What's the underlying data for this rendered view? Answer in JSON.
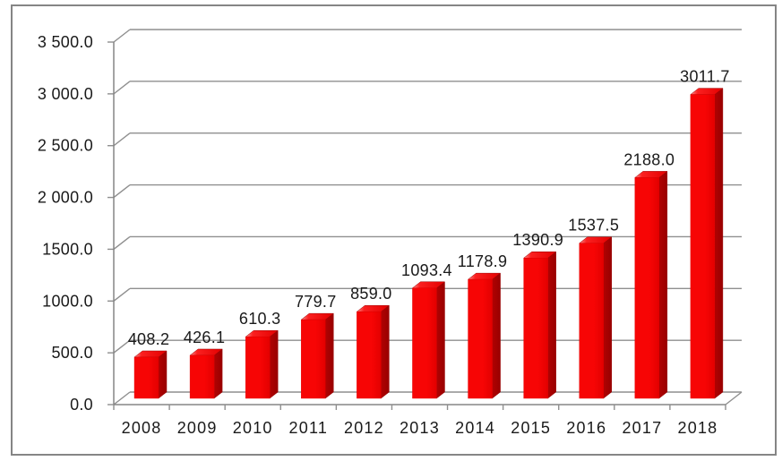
{
  "chart_data": {
    "type": "bar",
    "style": "3d-column",
    "title": "",
    "xlabel": "",
    "ylabel": "",
    "categories": [
      "2008",
      "2009",
      "2010",
      "2011",
      "2012",
      "2013",
      "2014",
      "2015",
      "2016",
      "2017",
      "2018"
    ],
    "values": [
      408.2,
      426.1,
      610.3,
      779.7,
      859.0,
      1093.4,
      1178.9,
      1390.9,
      1537.5,
      2188.0,
      3011.7
    ],
    "data_labels": [
      "408.2",
      "426.1",
      "610.3",
      "779.7",
      "859.0",
      "1093.4",
      "1178.9",
      "1390.9",
      "1537.5",
      "2188.0",
      "3011.7"
    ],
    "y_axis": {
      "min": 0,
      "max": 3500,
      "step": 500,
      "tick_labels": [
        "0.0",
        "500.0",
        "1000.0",
        "1500.0",
        "2 000.0",
        "2 500.0",
        "3 000.0",
        "3 500.0"
      ]
    },
    "grid": true,
    "legend": "none",
    "colors": {
      "bar_front": "#f70505",
      "bar_front_dark": "#e30000",
      "bar_top": "#fb2020",
      "bar_top_highlight": "#ff8d8d",
      "bar_side": "#b00202",
      "bar_side_dark": "#990000",
      "gridline": "#8f8f8f",
      "axis": "#858585",
      "text": "#1a1a1a",
      "frame": "#858585",
      "background": "#ffffff"
    }
  }
}
